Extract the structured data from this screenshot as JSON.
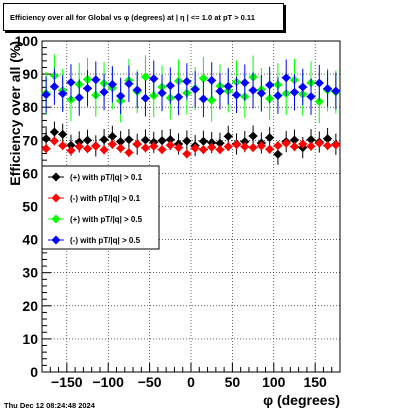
{
  "title": "Efficiency over all for Global vs φ (degrees) at |   η  | <= 1.0 at pT > 0.11",
  "timestamp": "Thu Dec 12 08:24:48 2024",
  "chart_data": {
    "type": "scatter",
    "xlabel": "φ (degrees)",
    "ylabel": "Efficiency over all (%)",
    "xlim": [
      -180,
      180
    ],
    "ylim": [
      0,
      100
    ],
    "x_ticks": [
      -150,
      -100,
      -50,
      0,
      50,
      100,
      150
    ],
    "x_tick_labels": [
      "−150",
      "−100",
      "−50",
      "0",
      "50",
      "100",
      "150"
    ],
    "y_ticks": [
      0,
      10,
      20,
      30,
      40,
      50,
      60,
      70,
      80,
      90,
      100
    ],
    "grid": true,
    "legend_position": "middle-left",
    "series": [
      {
        "name": "(+) with pT/|q| > 0.1",
        "color": "#000000",
        "marker": "diamond",
        "x": [
          -175,
          -165,
          -155,
          -145,
          -135,
          -125,
          -115,
          -105,
          -95,
          -85,
          -75,
          -65,
          -55,
          -45,
          -35,
          -25,
          -15,
          -5,
          5,
          15,
          25,
          35,
          45,
          55,
          65,
          75,
          85,
          95,
          105,
          115,
          125,
          135,
          145,
          155,
          165,
          175
        ],
        "y": [
          70.5,
          72.5,
          71.8,
          68.5,
          69.5,
          70,
          68.3,
          70.2,
          71.2,
          69.6,
          70.2,
          68.8,
          70.1,
          69.4,
          69.9,
          70.2,
          68.9,
          69.8,
          68.4,
          69.7,
          69.3,
          69.1,
          71.2,
          68.9,
          69.6,
          71.3,
          69.2,
          70.8,
          65.8,
          69.6,
          70.1,
          67.8,
          70.2,
          69.5,
          70.5,
          68.8
        ]
      },
      {
        "name": "(-) with pT/|q| > 0.1",
        "color": "#ff0000",
        "marker": "diamond",
        "x": [
          -175,
          -165,
          -155,
          -145,
          -135,
          -125,
          -115,
          -105,
          -95,
          -85,
          -75,
          -65,
          -55,
          -45,
          -35,
          -25,
          -15,
          -5,
          5,
          15,
          25,
          35,
          45,
          55,
          65,
          75,
          85,
          95,
          105,
          115,
          125,
          135,
          145,
          155,
          165,
          175
        ],
        "y": [
          67.5,
          69.8,
          68.4,
          66.9,
          68.1,
          67.5,
          68.2,
          67.1,
          68.8,
          67.6,
          66.3,
          68.9,
          67.7,
          68.2,
          67.2,
          68.5,
          67.8,
          65.9,
          67.6,
          67.2,
          67.9,
          67.2,
          68.1,
          68.7,
          68.1,
          67.8,
          68.3,
          67.3,
          68.4,
          69.1,
          68.1,
          68.9,
          68.2,
          69.1,
          68.4,
          68.6
        ]
      },
      {
        "name": "(+) with pT/|q| > 0.5",
        "color": "#00ff00",
        "marker": "diamond",
        "x": [
          -175,
          -165,
          -155,
          -145,
          -135,
          -125,
          -115,
          -105,
          -95,
          -85,
          -75,
          -65,
          -55,
          -45,
          -35,
          -25,
          -15,
          -5,
          5,
          15,
          25,
          35,
          45,
          55,
          65,
          75,
          85,
          95,
          105,
          115,
          125,
          135,
          145,
          155,
          165,
          175
        ],
        "y": [
          84.2,
          89.5,
          85.1,
          82.3,
          86.9,
          88.4,
          83.6,
          87.2,
          85.8,
          81.9,
          88.1,
          84.7,
          89.2,
          83.5,
          86.1,
          82.8,
          87.9,
          84.3,
          85.6,
          88.7,
          82.1,
          86.4,
          84.9,
          87.6,
          83.2,
          89.1,
          85.3,
          82.6,
          86.8,
          84.1,
          88.2,
          83.9,
          87.4,
          81.7,
          85.2,
          84.6
        ]
      },
      {
        "name": "(-) with pT/|q| > 0.5",
        "color": "#0000ff",
        "marker": "diamond",
        "x": [
          -175,
          -165,
          -155,
          -145,
          -135,
          -125,
          -115,
          -105,
          -95,
          -85,
          -75,
          -65,
          -55,
          -45,
          -35,
          -25,
          -15,
          -5,
          5,
          15,
          25,
          35,
          45,
          55,
          65,
          75,
          85,
          95,
          105,
          115,
          125,
          135,
          145,
          155,
          165,
          175
        ],
        "y": [
          83.8,
          86.2,
          84.1,
          87.5,
          82.9,
          85.7,
          88.3,
          84.6,
          86.9,
          83.4,
          87.1,
          85.2,
          82.7,
          88.6,
          84.3,
          86.5,
          83.1,
          87.8,
          85.4,
          82.5,
          88.1,
          84.8,
          86.3,
          83.7,
          87.4,
          85.1,
          84.2,
          86.7,
          83.5,
          88.9,
          84.5,
          86.1,
          83.2,
          87.3,
          85.6,
          84.9
        ]
      }
    ]
  }
}
